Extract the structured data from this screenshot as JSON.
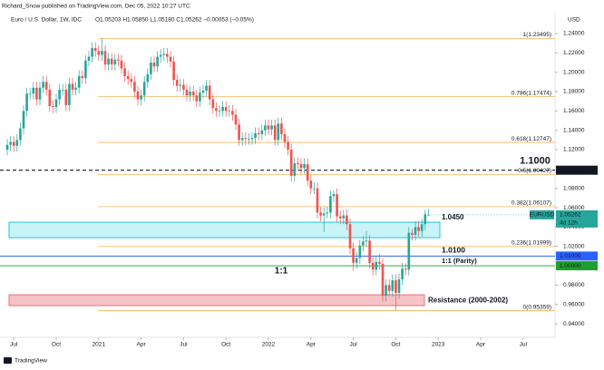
{
  "chart_data": {
    "type": "candlestick",
    "header": {
      "publisher": "Richard_Snow published on TradingView.com, Dec 05, 2022 10:27 UTC",
      "symbol": "Euro / U.S. Dollar, 1W, IDC",
      "ohlc": "O1.05203 H1.05850 L1.05180 C1.05262 −0.00053 (−0.05%)"
    },
    "currency": "USD",
    "footer": "TradingView",
    "up_color": "#26a69a",
    "down_color": "#ef5350",
    "grid": false,
    "xlim": [
      -2.222,
      167.778
    ],
    "ylim": [
      0.926,
      1.2653
    ],
    "xticks": [
      {
        "value": 2,
        "label": "Jul"
      },
      {
        "value": 15,
        "label": "Oct"
      },
      {
        "value": 28,
        "label": "2021"
      },
      {
        "value": 41,
        "label": "Apr"
      },
      {
        "value": 54,
        "label": "Jul"
      },
      {
        "value": 67,
        "label": "Oct"
      },
      {
        "value": 80,
        "label": "2022"
      },
      {
        "value": 93,
        "label": "Apr"
      },
      {
        "value": 106,
        "label": "Jul"
      },
      {
        "value": 119,
        "label": "Oct"
      },
      {
        "value": 132,
        "label": "2023"
      },
      {
        "value": 145,
        "label": "Apr"
      },
      {
        "value": 158,
        "label": "Jul"
      }
    ],
    "yticks": [
      {
        "value": 0.94,
        "label": "0.94000"
      },
      {
        "value": 0.96,
        "label": "0.96000"
      },
      {
        "value": 0.98,
        "label": "0.98000"
      },
      {
        "value": 1.02,
        "label": "1.02000"
      },
      {
        "value": 1.04,
        "label": "1.04000"
      },
      {
        "value": 1.06,
        "label": "1.06000"
      },
      {
        "value": 1.08,
        "label": "1.08000"
      },
      {
        "value": 1.12,
        "label": "1.12000"
      },
      {
        "value": 1.14,
        "label": "1.14000"
      },
      {
        "value": 1.16,
        "label": "1.16000"
      },
      {
        "value": 1.18,
        "label": "1.18000"
      },
      {
        "value": 1.2,
        "label": "1.20000"
      },
      {
        "value": 1.22,
        "label": "1.22000"
      },
      {
        "value": 1.24,
        "label": "1.24000"
      }
    ],
    "series": [
      {
        "name": "EURUSD",
        "open": [
          1.12,
          1.125,
          1.128,
          1.124,
          1.13,
          1.142,
          1.16,
          1.178,
          1.178,
          1.184,
          1.172,
          1.184,
          1.19,
          1.182,
          1.165,
          1.164,
          1.172,
          1.182,
          1.182,
          1.166,
          1.188,
          1.182,
          1.184,
          1.196,
          1.194,
          1.212,
          1.216,
          1.225,
          1.222,
          1.218,
          1.222,
          1.208,
          1.214,
          1.208,
          1.213,
          1.212,
          1.204,
          1.196,
          1.193,
          1.19,
          1.18,
          1.172,
          1.176,
          1.19,
          1.198,
          1.21,
          1.206,
          1.216,
          1.218,
          1.219,
          1.216,
          1.211,
          1.192,
          1.186,
          1.187,
          1.182,
          1.176,
          1.18,
          1.176,
          1.17,
          1.179,
          1.181,
          1.186,
          1.172,
          1.163,
          1.16,
          1.16,
          1.164,
          1.16,
          1.16,
          1.156,
          1.146,
          1.13,
          1.132,
          1.131,
          1.131,
          1.132,
          1.137,
          1.136,
          1.14,
          1.145,
          1.141,
          1.145,
          1.13,
          1.147,
          1.136,
          1.128,
          1.12,
          1.093,
          1.106,
          1.105,
          1.101,
          1.105,
          1.088,
          1.08,
          1.08,
          1.055,
          1.052,
          1.054,
          1.055,
          1.072,
          1.074,
          1.051,
          1.049,
          1.052,
          1.043,
          1.018,
          1.003,
          1.008,
          1.021,
          1.025,
          1.026,
          1.003,
          0.996,
          1.004,
          1.002,
          0.969,
          0.98,
          0.974,
          0.985,
          0.972,
          0.986,
          0.997,
          0.996,
          1.034,
          1.032,
          1.04,
          1.036,
          1.043,
          1.05203
        ],
        "high": [
          1.131,
          1.134,
          1.134,
          1.136,
          1.148,
          1.166,
          1.184,
          1.184,
          1.19,
          1.19,
          1.19,
          1.196,
          1.196,
          1.188,
          1.171,
          1.178,
          1.188,
          1.188,
          1.188,
          1.194,
          1.194,
          1.19,
          1.202,
          1.202,
          1.218,
          1.222,
          1.231,
          1.231,
          1.228,
          1.235,
          1.228,
          1.22,
          1.22,
          1.219,
          1.219,
          1.218,
          1.21,
          1.202,
          1.199,
          1.196,
          1.186,
          1.182,
          1.196,
          1.204,
          1.216,
          1.216,
          1.222,
          1.224,
          1.225,
          1.225,
          1.222,
          1.217,
          1.198,
          1.193,
          1.193,
          1.188,
          1.186,
          1.186,
          1.182,
          1.185,
          1.187,
          1.192,
          1.192,
          1.178,
          1.169,
          1.166,
          1.17,
          1.17,
          1.166,
          1.166,
          1.162,
          1.152,
          1.138,
          1.138,
          1.137,
          1.138,
          1.143,
          1.143,
          1.146,
          1.151,
          1.151,
          1.151,
          1.151,
          1.153,
          1.153,
          1.142,
          1.134,
          1.126,
          1.112,
          1.112,
          1.111,
          1.111,
          1.111,
          1.094,
          1.086,
          1.086,
          1.061,
          1.06,
          1.061,
          1.078,
          1.078,
          1.08,
          1.057,
          1.058,
          1.058,
          1.049,
          1.024,
          1.014,
          1.027,
          1.031,
          1.036,
          1.032,
          1.009,
          1.01,
          1.012,
          1.008,
          0.986,
          0.986,
          0.991,
          0.991,
          0.992,
          1.003,
          1.003,
          1.04,
          1.038,
          1.046,
          1.046,
          1.049,
          1.058,
          1.0585
        ],
        "low": [
          1.114,
          1.119,
          1.118,
          1.118,
          1.124,
          1.136,
          1.154,
          1.172,
          1.172,
          1.166,
          1.166,
          1.178,
          1.176,
          1.159,
          1.158,
          1.158,
          1.166,
          1.176,
          1.16,
          1.16,
          1.176,
          1.176,
          1.178,
          1.188,
          1.188,
          1.206,
          1.21,
          1.216,
          1.212,
          1.212,
          1.202,
          1.202,
          1.202,
          1.202,
          1.206,
          1.198,
          1.19,
          1.187,
          1.184,
          1.174,
          1.166,
          1.166,
          1.17,
          1.184,
          1.192,
          1.2,
          1.2,
          1.21,
          1.212,
          1.21,
          1.205,
          1.186,
          1.18,
          1.18,
          1.176,
          1.17,
          1.17,
          1.17,
          1.164,
          1.164,
          1.173,
          1.175,
          1.166,
          1.157,
          1.154,
          1.154,
          1.154,
          1.154,
          1.154,
          1.15,
          1.14,
          1.124,
          1.124,
          1.125,
          1.125,
          1.125,
          1.126,
          1.13,
          1.13,
          1.134,
          1.135,
          1.135,
          1.124,
          1.124,
          1.13,
          1.122,
          1.114,
          1.087,
          1.087,
          1.099,
          1.095,
          1.095,
          1.082,
          1.074,
          1.074,
          1.049,
          1.046,
          1.035,
          1.049,
          1.049,
          1.066,
          1.045,
          1.043,
          1.043,
          1.037,
          1.012,
          0.995,
          0.997,
          1.002,
          1.015,
          1.019,
          0.997,
          0.99,
          0.99,
          0.996,
          0.963,
          0.963,
          0.968,
          0.968,
          0.954,
          0.966,
          0.98,
          0.99,
          0.99,
          1.026,
          1.026,
          1.03,
          1.03,
          1.037,
          1.0518
        ],
        "close": [
          1.125,
          1.128,
          1.124,
          1.13,
          1.142,
          1.16,
          1.178,
          1.178,
          1.184,
          1.172,
          1.184,
          1.19,
          1.182,
          1.165,
          1.164,
          1.172,
          1.182,
          1.182,
          1.166,
          1.188,
          1.182,
          1.184,
          1.196,
          1.194,
          1.212,
          1.216,
          1.225,
          1.222,
          1.218,
          1.222,
          1.208,
          1.214,
          1.208,
          1.213,
          1.212,
          1.204,
          1.196,
          1.193,
          1.19,
          1.18,
          1.172,
          1.176,
          1.19,
          1.198,
          1.21,
          1.206,
          1.216,
          1.218,
          1.219,
          1.216,
          1.211,
          1.192,
          1.186,
          1.187,
          1.182,
          1.176,
          1.18,
          1.176,
          1.17,
          1.179,
          1.181,
          1.186,
          1.172,
          1.163,
          1.16,
          1.16,
          1.164,
          1.16,
          1.16,
          1.156,
          1.146,
          1.13,
          1.132,
          1.131,
          1.131,
          1.132,
          1.137,
          1.136,
          1.14,
          1.145,
          1.141,
          1.145,
          1.13,
          1.147,
          1.136,
          1.128,
          1.12,
          1.093,
          1.106,
          1.105,
          1.101,
          1.105,
          1.088,
          1.08,
          1.08,
          1.055,
          1.052,
          1.054,
          1.055,
          1.072,
          1.074,
          1.051,
          1.049,
          1.052,
          1.043,
          1.018,
          1.003,
          1.008,
          1.021,
          1.025,
          1.026,
          1.003,
          0.996,
          1.004,
          1.002,
          0.969,
          0.98,
          0.974,
          0.985,
          0.972,
          0.986,
          0.997,
          0.996,
          1.034,
          1.032,
          1.04,
          1.036,
          1.043,
          1.05315,
          1.05262
        ]
      }
    ],
    "fib_color": "#f5a742",
    "fib_levels": [
      {
        "value": 1.23495,
        "label": "1(1.23495)"
      },
      {
        "value": 1.17474,
        "label": "0.786(1.17474)"
      },
      {
        "value": 1.12747,
        "label": "0.618(1.12747)"
      },
      {
        "value": 1.09427,
        "label": "0.5(1.09427)"
      },
      {
        "value": 1.06107,
        "label": "0.382(1.06107)"
      },
      {
        "value": 1.01999,
        "label": "0.236(1.01999)"
      },
      {
        "value": 0.95359,
        "label": "0(0.95359)"
      }
    ],
    "levels": [
      {
        "value": 1.09876,
        "label": "1.09876",
        "color": "#131722",
        "dashed": true
      },
      {
        "value": 1.01,
        "label": "1.01000",
        "color": "#2962ff",
        "dashed": false
      },
      {
        "value": 1.0,
        "label": "1.00000",
        "color": "#1e9e2e",
        "dashed": false
      }
    ],
    "zones": [
      {
        "low": 1.029,
        "high": 1.045,
        "fill": "#c8f3f7",
        "stroke": "#26c6da"
      },
      {
        "low": 0.9588,
        "high": 0.97,
        "fill": "#f7c3c6",
        "stroke": "#e57373"
      }
    ],
    "annotations": [
      {
        "text": "1.1000",
        "value": 1.1,
        "color": "#131722"
      },
      {
        "text": "1.0450",
        "value": 1.045,
        "color": "#2d8fd5"
      },
      {
        "text": "1.0100",
        "value": 1.01,
        "color": "#2962ff"
      },
      {
        "text": "1:1 (Parity)",
        "value": 1.0,
        "color": "#2e9e3e"
      },
      {
        "text": "1:1",
        "value": 1.0,
        "color": "#2e9e3e"
      },
      {
        "text": "Resistance (2000-2002)",
        "value": 0.964,
        "color": "#e0535c"
      }
    ],
    "last_price": {
      "symbol": "EURUSD",
      "price": "1.05262",
      "countdown": "4d 12h",
      "color": "#26a69a"
    }
  }
}
